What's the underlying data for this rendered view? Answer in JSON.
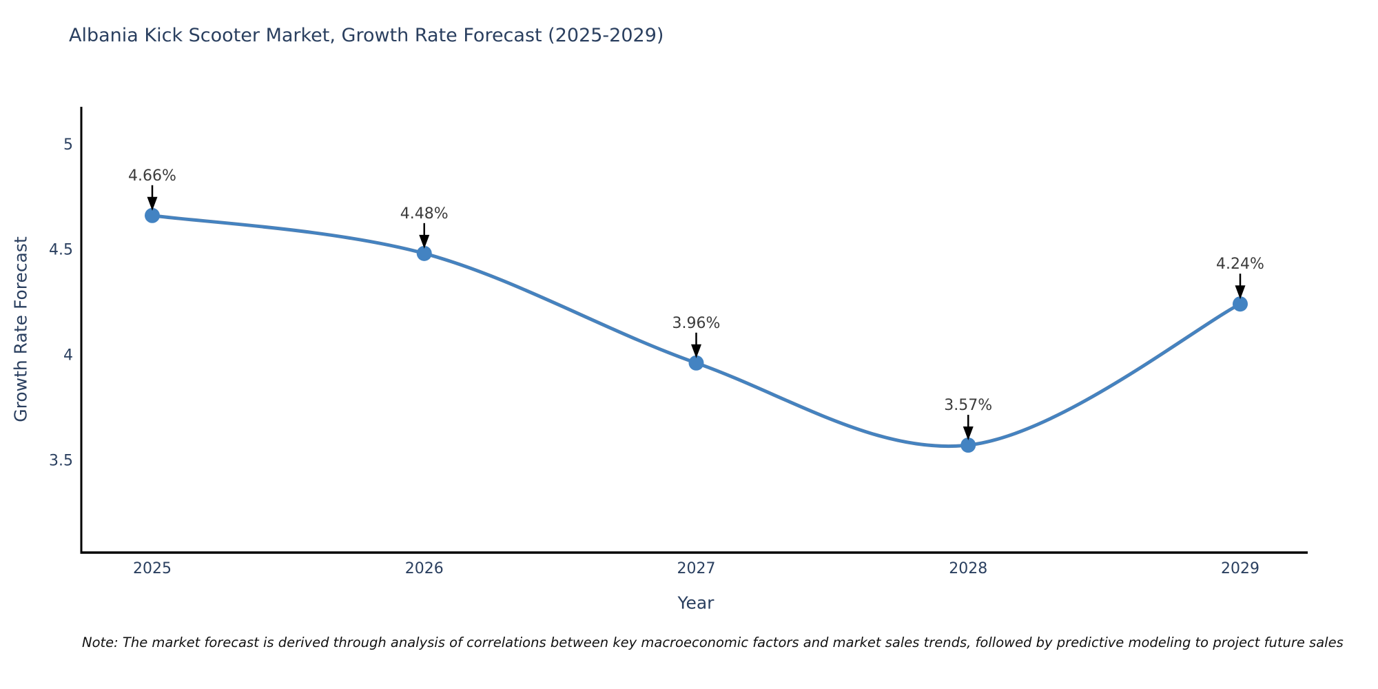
{
  "chart": {
    "title": "Albania Kick Scooter Market, Growth Rate Forecast (2025-2029)"
  },
  "chart_data": {
    "type": "line",
    "title": "Albania Kick Scooter Market, Growth Rate Forecast (2025-2029)",
    "categories": [
      "2025",
      "2026",
      "2027",
      "2028",
      "2029"
    ],
    "series": [
      {
        "name": "Growth Rate Forecast",
        "values": [
          4.66,
          4.48,
          3.96,
          3.57,
          4.24
        ]
      }
    ],
    "point_labels": [
      "4.66%",
      "4.48%",
      "3.96%",
      "3.57%",
      "4.24%"
    ],
    "xlabel": "Year",
    "ylabel": "Growth Rate Forecast",
    "ytick_labels": [
      "5",
      "4.5",
      "4",
      "3.5"
    ],
    "ytick_values": [
      5,
      4.5,
      4,
      3.5
    ],
    "ylim": [
      3.06,
      5.176
    ],
    "grid": false,
    "legend": "none",
    "smooth": true,
    "marker": "circle",
    "annotation_arrows": true
  },
  "note": {
    "text": "Note: The market forecast is derived through analysis of correlations between key macroeconomic factors and market sales trends, followed by predictive modeling to project future sales"
  },
  "colors": {
    "line": "#4383c2",
    "marker": "#4383c2",
    "axis": "#000000",
    "title_text": "#2a3f5f",
    "tick_text": "#2a3f5f",
    "annotation_text": "#3b3b3b",
    "arrow": "#000000",
    "background": "#ffffff"
  }
}
